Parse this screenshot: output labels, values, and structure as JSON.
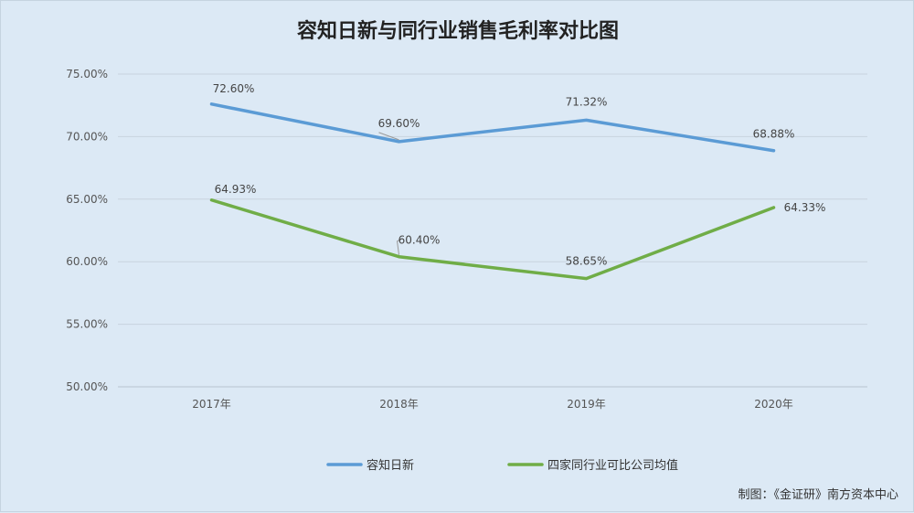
{
  "chart_data": {
    "type": "line",
    "title": "容知日新与同行业销售毛利率对比图",
    "categories": [
      "2017年",
      "2018年",
      "2019年",
      "2020年"
    ],
    "ylim": [
      50,
      75
    ],
    "yticks": [
      50,
      55,
      60,
      65,
      70,
      75
    ],
    "ytick_labels": [
      "50.00%",
      "55.00%",
      "60.00%",
      "65.00%",
      "70.00%",
      "75.00%"
    ],
    "grid": true,
    "legend_position": "bottom",
    "series": [
      {
        "name": "容知日新",
        "color": "#5b9bd5",
        "values": [
          72.6,
          69.6,
          71.32,
          68.88
        ],
        "labels": [
          "72.60%",
          "69.60%",
          "71.32%",
          "68.88%"
        ]
      },
      {
        "name": "四家同行业可比公司均值",
        "color": "#70ad47",
        "values": [
          64.93,
          60.4,
          58.65,
          64.33
        ],
        "labels": [
          "64.93%",
          "60.40%",
          "58.65%",
          "64.33%"
        ]
      }
    ]
  },
  "footer": {
    "credit": "制图：《金证研》南方资本中心"
  }
}
